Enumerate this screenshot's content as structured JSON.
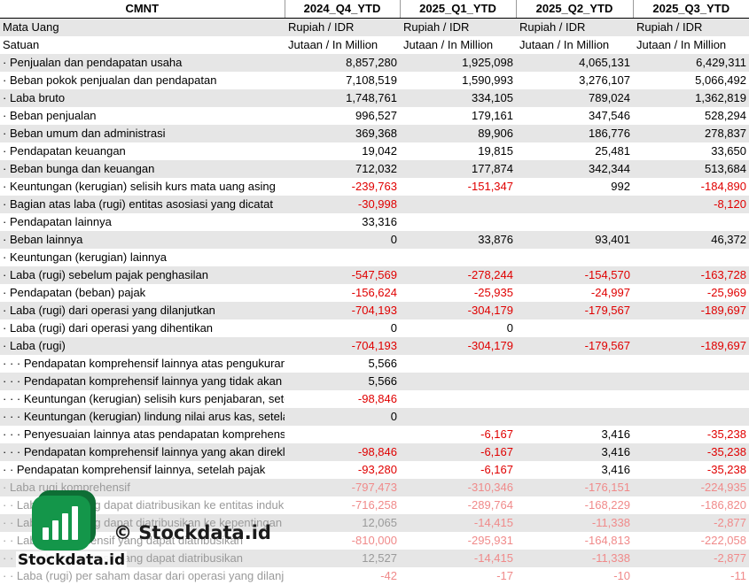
{
  "header": {
    "ticker": "CMNT",
    "periods": [
      "2024_Q4_YTD",
      "2025_Q1_YTD",
      "2025_Q2_YTD",
      "2025_Q3_YTD"
    ]
  },
  "unit_rows": [
    {
      "label": "Mata Uang",
      "values": [
        "Rupiah / IDR",
        "Rupiah / IDR",
        "Rupiah / IDR",
        "Rupiah / IDR"
      ]
    },
    {
      "label": "Satuan",
      "values": [
        "Jutaan / In Million",
        "Jutaan / In Million",
        "Jutaan / In Million",
        "Jutaan / In Million"
      ]
    }
  ],
  "rows": [
    {
      "label": "· Penjualan dan pendapatan usaha",
      "values": [
        "8,857,280",
        "1,925,098",
        "4,065,131",
        "6,429,311"
      ]
    },
    {
      "label": "· Beban pokok penjualan dan pendapatan",
      "values": [
        "7,108,519",
        "1,590,993",
        "3,276,107",
        "5,066,492"
      ]
    },
    {
      "label": "· Laba bruto",
      "values": [
        "1,748,761",
        "334,105",
        "789,024",
        "1,362,819"
      ]
    },
    {
      "label": "· Beban penjualan",
      "values": [
        "996,527",
        "179,161",
        "347,546",
        "528,294"
      ]
    },
    {
      "label": "· Beban umum dan administrasi",
      "values": [
        "369,368",
        "89,906",
        "186,776",
        "278,837"
      ]
    },
    {
      "label": "· Pendapatan keuangan",
      "values": [
        "19,042",
        "19,815",
        "25,481",
        "33,650"
      ]
    },
    {
      "label": "· Beban bunga dan keuangan",
      "values": [
        "712,032",
        "177,874",
        "342,344",
        "513,684"
      ]
    },
    {
      "label": "· Keuntungan (kerugian) selisih kurs mata uang asing",
      "values": [
        "-239,763",
        "-151,347",
        "992",
        "-184,890"
      ]
    },
    {
      "label": "· Bagian atas laba (rugi) entitas asosiasi yang dicatat",
      "values": [
        "-30,998",
        "",
        "",
        "-8,120"
      ]
    },
    {
      "label": "· Pendapatan lainnya",
      "values": [
        "33,316",
        "",
        "",
        ""
      ]
    },
    {
      "label": "· Beban lainnya",
      "values": [
        "0",
        "33,876",
        "93,401",
        "46,372"
      ]
    },
    {
      "label": "· Keuntungan (kerugian) lainnya",
      "values": [
        "",
        "",
        "",
        ""
      ]
    },
    {
      "label": "· Laba (rugi) sebelum pajak penghasilan",
      "values": [
        "-547,569",
        "-278,244",
        "-154,570",
        "-163,728"
      ]
    },
    {
      "label": "· Pendapatan (beban) pajak",
      "values": [
        "-156,624",
        "-25,935",
        "-24,997",
        "-25,969"
      ]
    },
    {
      "label": "· Laba (rugi) dari operasi yang dilanjutkan",
      "values": [
        "-704,193",
        "-304,179",
        "-179,567",
        "-189,697"
      ]
    },
    {
      "label": "· Laba (rugi) dari operasi yang dihentikan",
      "values": [
        "0",
        "0",
        "",
        ""
      ]
    },
    {
      "label": "· Laba (rugi)",
      "values": [
        "-704,193",
        "-304,179",
        "-179,567",
        "-189,697"
      ]
    },
    {
      "label": "· · · Pendapatan komprehensif lainnya atas pengukuran",
      "values": [
        "5,566",
        "",
        "",
        ""
      ]
    },
    {
      "label": "· · · Pendapatan komprehensif lainnya yang tidak akan",
      "values": [
        "5,566",
        "",
        "",
        ""
      ]
    },
    {
      "label": "· · · Keuntungan (kerugian) selisih kurs penjabaran, setelah",
      "values": [
        "-98,846",
        "",
        "",
        ""
      ]
    },
    {
      "label": "· · · Keuntungan (kerugian) lindung nilai arus kas, setelah",
      "values": [
        "0",
        "",
        "",
        ""
      ]
    },
    {
      "label": "· · · Penyesuaian lainnya atas pendapatan komprehensif lainnya yang akan",
      "values": [
        "",
        "-6,167",
        "3,416",
        "-35,238"
      ]
    },
    {
      "label": "· · · Pendapatan komprehensif lainnya yang akan direklasifikasi",
      "values": [
        "-98,846",
        "-6,167",
        "3,416",
        "-35,238"
      ]
    },
    {
      "label": "· · Pendapatan komprehensif lainnya, setelah pajak",
      "values": [
        "-93,280",
        "-6,167",
        "3,416",
        "-35,238"
      ]
    },
    {
      "label": "· Laba rugi komprehensif",
      "values": [
        "-797,473",
        "-310,346",
        "-176,151",
        "-224,935"
      ],
      "faded": true
    },
    {
      "label": "· · Laba (rugi) yang dapat diatribusikan ke entitas induk",
      "values": [
        "-716,258",
        "-289,764",
        "-168,229",
        "-186,820"
      ],
      "faded": true
    },
    {
      "label": "· · Laba (rugi) yang dapat diatribusikan ke kepentingan",
      "values": [
        "12,065",
        "-14,415",
        "-11,338",
        "-2,877"
      ],
      "faded": true
    },
    {
      "label": "· · Laba komprehensif yang dapat diatribusikan",
      "values": [
        "-810,000",
        "-295,931",
        "-164,813",
        "-222,058"
      ],
      "faded": true
    },
    {
      "label": "· · Laba komprehensif yang dapat diatribusikan",
      "values": [
        "12,527",
        "-14,415",
        "-11,338",
        "-2,877"
      ],
      "faded": true
    },
    {
      "label": "· · Laba (rugi) per saham dasar dari operasi yang dilanjutkan",
      "values": [
        "-42",
        "-17",
        "-10",
        "-11"
      ],
      "faded": true
    }
  ],
  "watermark": {
    "text": "© Stockdata.id"
  },
  "logo": {
    "text": "Stockdata.id",
    "color": "#14964a"
  },
  "colors": {
    "negative": "#e00000",
    "band": "#e6e6e6"
  }
}
